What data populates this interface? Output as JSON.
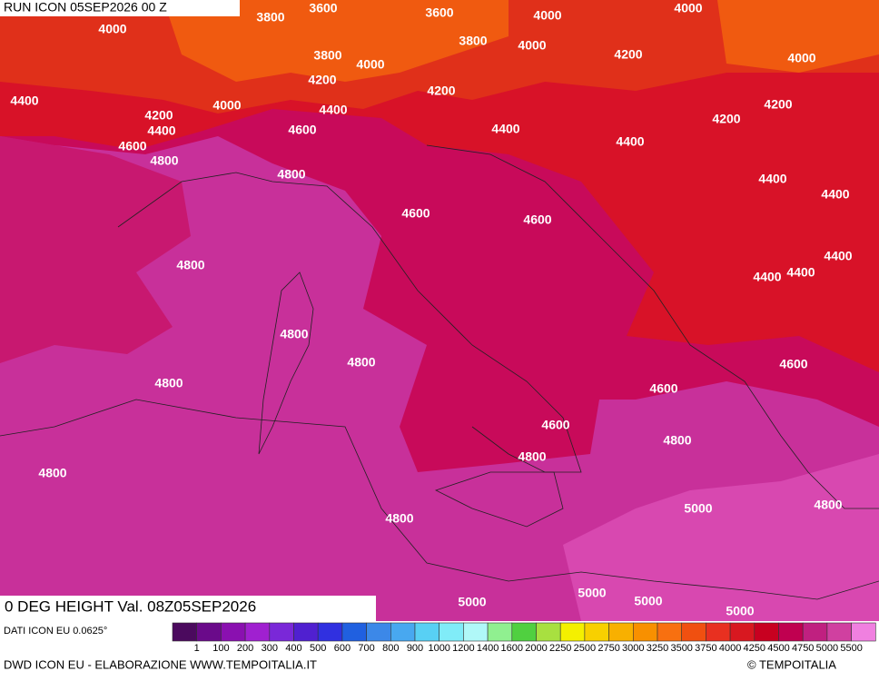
{
  "header": {
    "run": "RUN ICON 05SEP2026 00 Z",
    "title": "0 DEG HEIGHT Val. 08Z05SEP2026"
  },
  "contours": [
    "3800",
    "3600",
    "3600",
    "4000",
    "4000",
    "4000",
    "3800",
    "4000",
    "3800",
    "4000",
    "4200",
    "4000",
    "4400",
    "4200",
    "4200",
    "4000",
    "4400",
    "4200",
    "4400",
    "4200",
    "4200",
    "4600",
    "4400",
    "4400",
    "4600",
    "4800",
    "4800",
    "4400",
    "4400",
    "4600",
    "4600",
    "4400",
    "4800",
    "4400",
    "4400",
    "4800",
    "4800",
    "4600",
    "4800",
    "4600",
    "4600",
    "4800",
    "4800",
    "4800",
    "5000",
    "4800",
    "4800",
    "5000",
    "5000",
    "5000",
    "5000"
  ],
  "legend": {
    "labels": [
      "1",
      "100",
      "200",
      "300",
      "400",
      "500",
      "600",
      "700",
      "800",
      "900",
      "1000",
      "1200",
      "1400",
      "1600",
      "2000",
      "2250",
      "2500",
      "2750",
      "3000",
      "3250",
      "3500",
      "3750",
      "4000",
      "4250",
      "4500",
      "4750",
      "5000",
      "5500"
    ],
    "colors": [
      "#4b0a5e",
      "#6a0a8a",
      "#8a10b0",
      "#a020d0",
      "#7a28d8",
      "#5020d0",
      "#3030e0",
      "#2060e0",
      "#3c88e8",
      "#48a8f0",
      "#58d0f4",
      "#80ecf8",
      "#b0f8f8",
      "#90f090",
      "#50d040",
      "#a8e040",
      "#f4f000",
      "#f8d000",
      "#f8b000",
      "#f89000",
      "#f87010",
      "#f05010",
      "#e83020",
      "#d81820",
      "#c80020",
      "#c00050",
      "#c02080",
      "#d040a0",
      "#f080e0"
    ]
  },
  "footer": {
    "data_source": "DATI ICON EU 0.0625°",
    "credit": "DWD ICON EU - ELABORAZIONE WWW.TEMPOITALIA.IT",
    "copyright": "© TEMPOITALIA"
  }
}
